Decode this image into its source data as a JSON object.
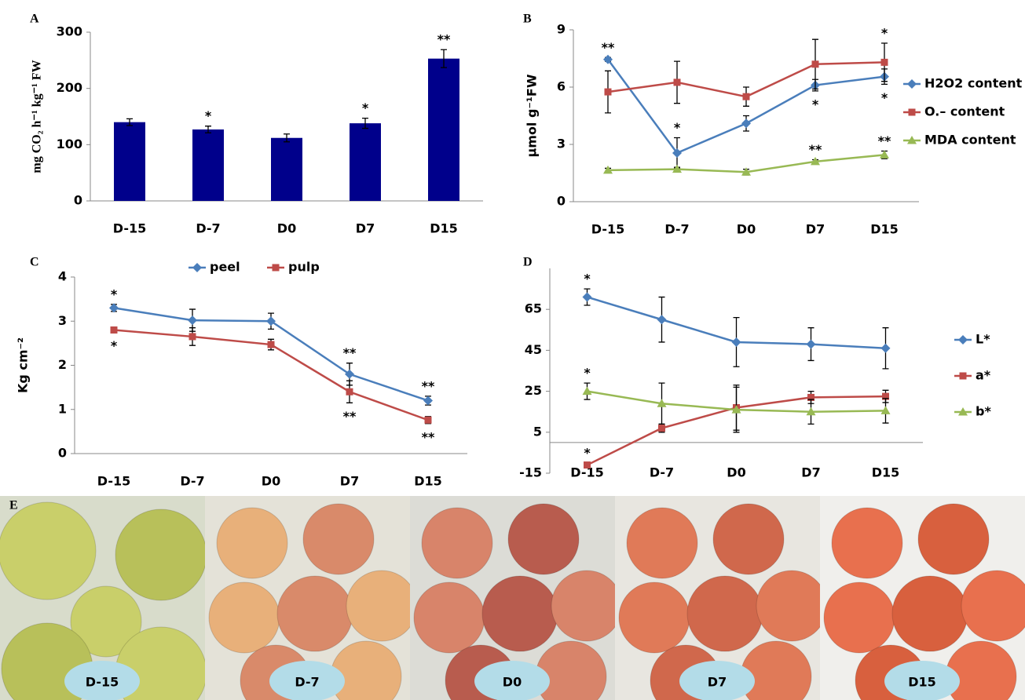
{
  "chart_data": [
    {
      "type": "bar",
      "panel": "A",
      "y_label": "mg CO₂ h⁻¹ kg⁻¹ FW",
      "categories": [
        "D-15",
        "D-7",
        "D0",
        "D7",
        "D15"
      ],
      "values": [
        140,
        127,
        112,
        138,
        253
      ],
      "errors": [
        6,
        6,
        7,
        9,
        16
      ],
      "significance": [
        null,
        "*",
        null,
        "*",
        "**"
      ],
      "color": "#00008b",
      "ylim": [
        0,
        300
      ],
      "yticks": [
        0,
        100,
        200,
        300
      ]
    },
    {
      "type": "line",
      "panel": "B",
      "y_label": "μmol g⁻¹FW",
      "legend": "right",
      "categories": [
        "D-15",
        "D-7",
        "D0",
        "D7",
        "D15"
      ],
      "series": [
        {
          "name": "H2O2 content",
          "color": "#4a7ebb",
          "values": [
            7.45,
            2.55,
            4.1,
            6.1,
            6.55
          ],
          "errors": [
            0.1,
            0.8,
            0.4,
            0.3,
            0.4
          ],
          "significance": [
            "**",
            "*",
            null,
            "*",
            "*"
          ]
        },
        {
          "name": "O.– content",
          "color": "#be4b48",
          "values": [
            5.75,
            6.25,
            5.5,
            7.2,
            7.3
          ],
          "errors": [
            1.1,
            1.1,
            0.5,
            1.3,
            1.0
          ],
          "significance": [
            null,
            null,
            null,
            null,
            "*"
          ]
        },
        {
          "name": "MDA content",
          "color": "#98b954",
          "values": [
            1.65,
            1.7,
            1.55,
            2.1,
            2.45
          ],
          "errors": [
            0.1,
            0.1,
            0.15,
            0.1,
            0.2
          ],
          "significance": [
            null,
            null,
            null,
            "**",
            "**"
          ]
        }
      ],
      "ylim": [
        0,
        9
      ],
      "yticks": [
        0,
        3,
        6,
        9
      ]
    },
    {
      "type": "line",
      "panel": "C",
      "y_label": "Kg cm⁻²",
      "legend": "top",
      "categories": [
        "D-15",
        "D-7",
        "D0",
        "D7",
        "D15"
      ],
      "series": [
        {
          "name": "peel",
          "color": "#4a7ebb",
          "values": [
            3.3,
            3.02,
            3.0,
            1.8,
            1.2
          ],
          "errors": [
            0.08,
            0.25,
            0.18,
            0.25,
            0.1
          ],
          "significance": [
            "*",
            null,
            null,
            "**",
            "**"
          ]
        },
        {
          "name": "pulp",
          "color": "#be4b48",
          "values": [
            2.8,
            2.65,
            2.47,
            1.4,
            0.76
          ],
          "errors": [
            0.05,
            0.2,
            0.12,
            0.25,
            0.08
          ],
          "significance": [
            "*",
            null,
            null,
            "**",
            "**"
          ]
        }
      ],
      "ylim": [
        0,
        4
      ],
      "yticks": [
        0,
        1,
        2,
        3,
        4
      ]
    },
    {
      "type": "line",
      "panel": "D",
      "legend": "right",
      "categories": [
        "D-15",
        "D-7",
        "D0",
        "D7",
        "D15"
      ],
      "series": [
        {
          "name": "L*",
          "color": "#4a7ebb",
          "values": [
            71,
            60,
            49,
            48,
            46
          ],
          "errors": [
            4,
            11,
            12,
            8,
            10
          ],
          "significance": [
            "*",
            null,
            null,
            null,
            null
          ]
        },
        {
          "name": "a*",
          "color": "#be4b48",
          "values": [
            -11,
            7,
            17,
            22,
            22.5
          ],
          "errors": [
            1,
            2,
            11,
            3,
            3
          ],
          "significance": [
            "*",
            null,
            null,
            null,
            null
          ]
        },
        {
          "name": "b*",
          "color": "#98b954",
          "values": [
            25,
            19,
            16,
            15,
            15.5
          ],
          "errors": [
            4,
            10,
            11,
            6,
            6
          ],
          "significance": [
            "*",
            null,
            null,
            null,
            null
          ]
        }
      ],
      "ylim": [
        -15,
        85
      ],
      "yticks": [
        -15,
        5,
        25,
        45,
        65
      ]
    }
  ],
  "photos": {
    "panel": "E",
    "labels": [
      "D-15",
      "D-7",
      "D0",
      "D7",
      "D15"
    ]
  }
}
